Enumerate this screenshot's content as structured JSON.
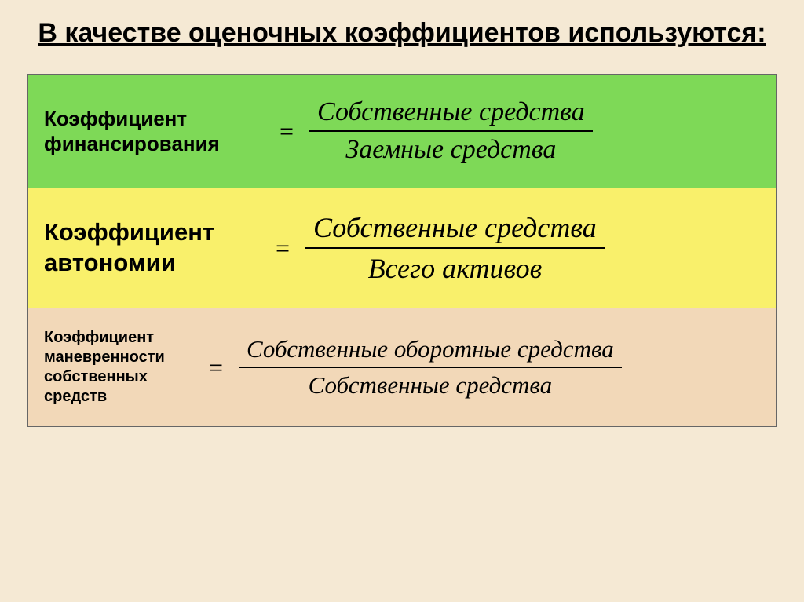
{
  "title": "В качестве оценочных коэффициентов используются:",
  "rows": [
    {
      "bg": "#7ed957",
      "label": "Коэффициент финансирования",
      "label_fontsize": 26,
      "numerator": "Собственные средства",
      "denominator": "Заемные средства",
      "formula_fontsize": 34
    },
    {
      "bg": "#f9f06b",
      "label": "Коэффициент автономии",
      "label_fontsize": 31,
      "numerator": "Собственные средства",
      "denominator": "Всего  активов",
      "formula_fontsize": 36
    },
    {
      "bg": "#f2d8b8",
      "label": "Коэффициент маневренности собственных средств",
      "label_fontsize": 20,
      "numerator": "Собственные оборотные средства",
      "denominator": "Собственные средства",
      "formula_fontsize": 31
    }
  ],
  "colors": {
    "background": "#f5e9d4",
    "border": "#666666",
    "text": "#000000"
  }
}
